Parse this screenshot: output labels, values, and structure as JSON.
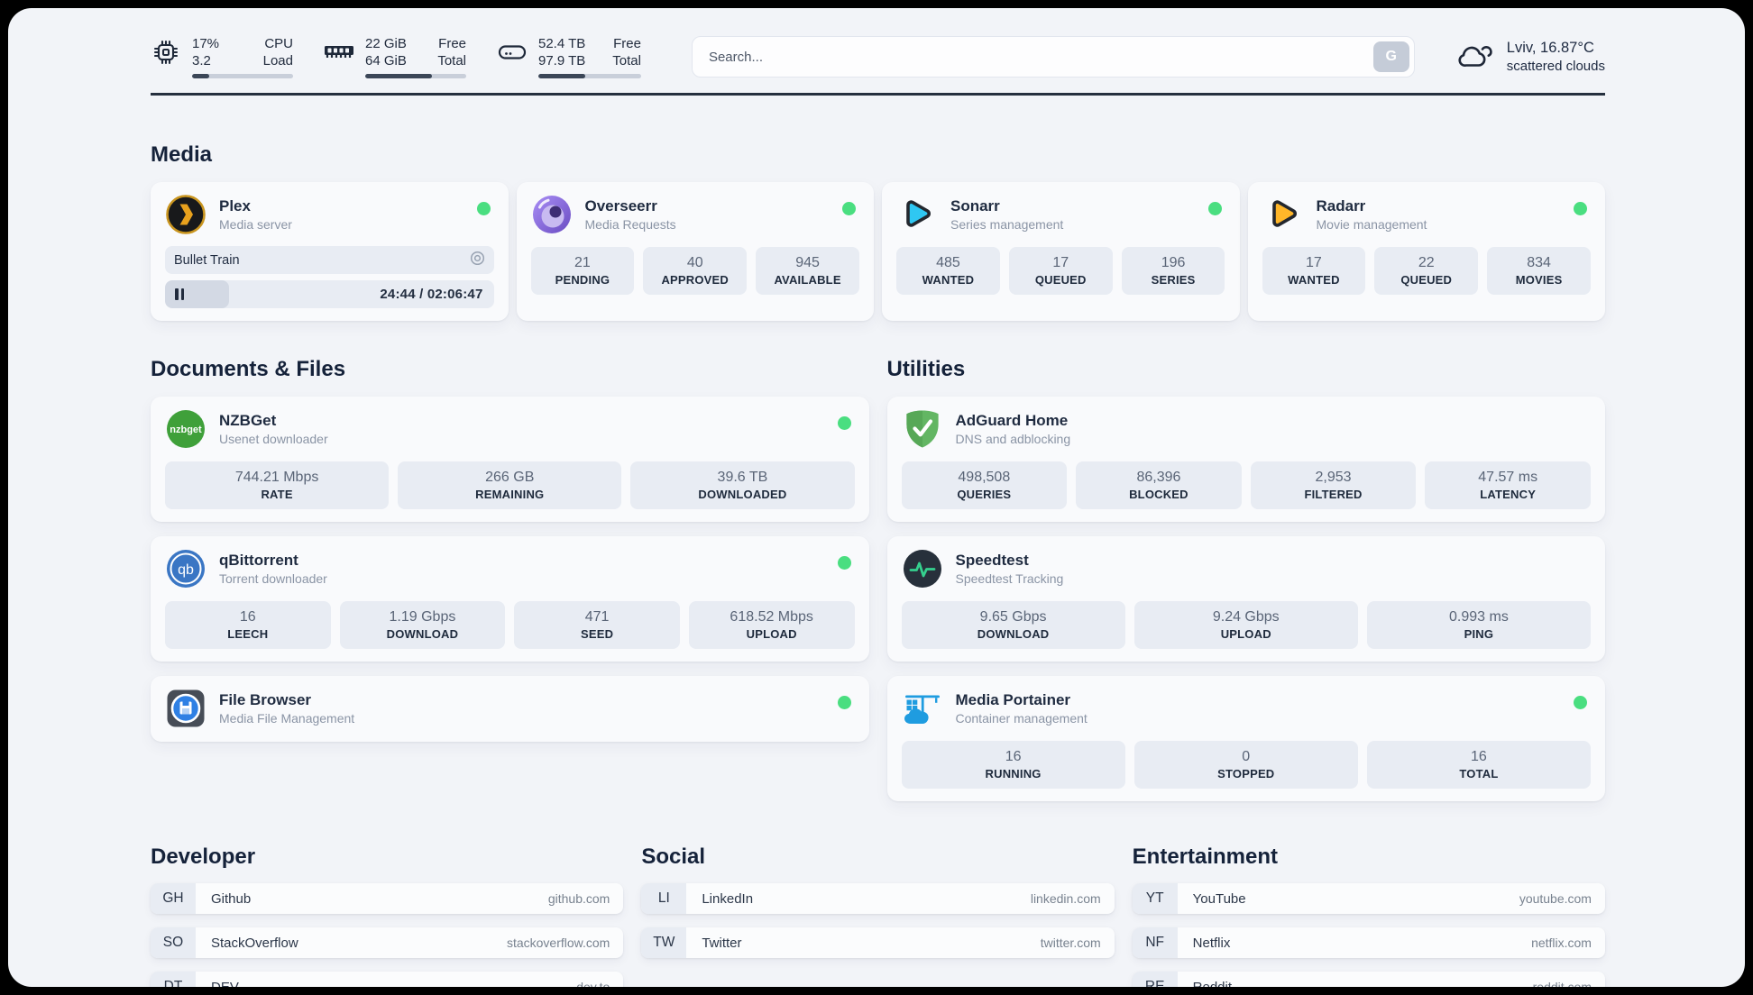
{
  "system": {
    "cpu": {
      "line1": "17%",
      "line2": "3.2",
      "label1": "CPU",
      "label2": "Load",
      "usage_percent": 17
    },
    "memory": {
      "line1": "22 GiB",
      "line2": "64 GiB",
      "label1": "Free",
      "label2": "Total",
      "usage_percent": 66
    },
    "storage": {
      "line1": "52.4 TB",
      "line2": "97.9 TB",
      "label1": "Free",
      "label2": "Total",
      "usage_percent": 46
    }
  },
  "search": {
    "placeholder": "Search...",
    "engine_button": "G"
  },
  "weather": {
    "summary": "Lviv, 16.87°C",
    "condition": "scattered clouds"
  },
  "colors": {
    "status_online": "#4ade80",
    "progress_fill": "#3b4657"
  },
  "media": {
    "title": "Media",
    "plex": {
      "name": "Plex",
      "desc": "Media server",
      "now_playing": "Bullet Train",
      "time": "24:44 / 02:06:47",
      "progress_percent": 19.5
    },
    "apps": [
      {
        "name": "Overseerr",
        "desc": "Media Requests",
        "stats": [
          {
            "value": "21",
            "label": "PENDING"
          },
          {
            "value": "40",
            "label": "APPROVED"
          },
          {
            "value": "945",
            "label": "AVAILABLE"
          }
        ]
      },
      {
        "name": "Sonarr",
        "desc": "Series management",
        "stats": [
          {
            "value": "485",
            "label": "WANTED"
          },
          {
            "value": "17",
            "label": "QUEUED"
          },
          {
            "value": "196",
            "label": "SERIES"
          }
        ]
      },
      {
        "name": "Radarr",
        "desc": "Movie management",
        "stats": [
          {
            "value": "17",
            "label": "WANTED"
          },
          {
            "value": "22",
            "label": "QUEUED"
          },
          {
            "value": "834",
            "label": "MOVIES"
          }
        ]
      }
    ]
  },
  "documents": {
    "title": "Documents & Files",
    "apps": [
      {
        "name": "NZBGet",
        "desc": "Usenet downloader",
        "stats": [
          {
            "value": "744.21 Mbps",
            "label": "RATE"
          },
          {
            "value": "266 GB",
            "label": "REMAINING"
          },
          {
            "value": "39.6 TB",
            "label": "DOWNLOADED"
          }
        ]
      },
      {
        "name": "qBittorrent",
        "desc": "Torrent downloader",
        "stats": [
          {
            "value": "16",
            "label": "LEECH"
          },
          {
            "value": "1.19 Gbps",
            "label": "DOWNLOAD"
          },
          {
            "value": "471",
            "label": "SEED"
          },
          {
            "value": "618.52 Mbps",
            "label": "UPLOAD"
          }
        ]
      },
      {
        "name": "File Browser",
        "desc": "Media File Management",
        "stats": []
      }
    ]
  },
  "utilities": {
    "title": "Utilities",
    "apps": [
      {
        "name": "AdGuard Home",
        "desc": "DNS and adblocking",
        "stats": [
          {
            "value": "498,508",
            "label": "QUERIES"
          },
          {
            "value": "86,396",
            "label": "BLOCKED"
          },
          {
            "value": "2,953",
            "label": "FILTERED"
          },
          {
            "value": "47.57 ms",
            "label": "LATENCY"
          }
        ]
      },
      {
        "name": "Speedtest",
        "desc": "Speedtest Tracking",
        "stats": [
          {
            "value": "9.65 Gbps",
            "label": "DOWNLOAD"
          },
          {
            "value": "9.24 Gbps",
            "label": "UPLOAD"
          },
          {
            "value": "0.993 ms",
            "label": "PING"
          }
        ]
      },
      {
        "name": "Media Portainer",
        "desc": "Container management",
        "stats": [
          {
            "value": "16",
            "label": "RUNNING"
          },
          {
            "value": "0",
            "label": "STOPPED"
          },
          {
            "value": "16",
            "label": "TOTAL"
          }
        ]
      }
    ]
  },
  "bookmarks": [
    {
      "title": "Developer",
      "links": [
        {
          "abbr": "GH",
          "name": "Github",
          "url": "github.com"
        },
        {
          "abbr": "SO",
          "name": "StackOverflow",
          "url": "stackoverflow.com"
        },
        {
          "abbr": "DT",
          "name": "DEV",
          "url": "dev.to"
        }
      ]
    },
    {
      "title": "Social",
      "links": [
        {
          "abbr": "LI",
          "name": "LinkedIn",
          "url": "linkedin.com"
        },
        {
          "abbr": "TW",
          "name": "Twitter",
          "url": "twitter.com"
        }
      ]
    },
    {
      "title": "Entertainment",
      "links": [
        {
          "abbr": "YT",
          "name": "YouTube",
          "url": "youtube.com"
        },
        {
          "abbr": "NF",
          "name": "Netflix",
          "url": "netflix.com"
        },
        {
          "abbr": "RE",
          "name": "Reddit",
          "url": "reddit.com"
        }
      ]
    }
  ]
}
